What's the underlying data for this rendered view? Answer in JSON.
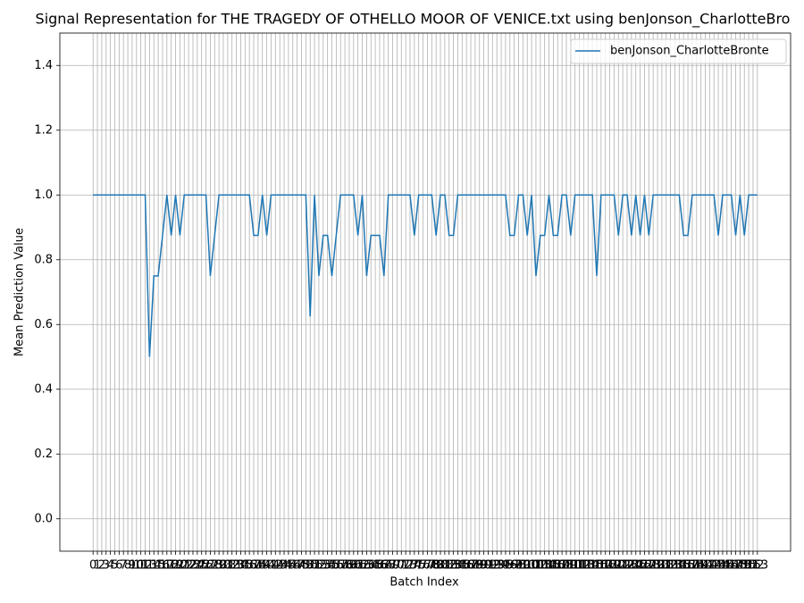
{
  "chart_data": {
    "type": "line",
    "title": "Signal Representation for THE TRAGEDY OF OTHELLO MOOR OF VENICE.txt using benJonson_CharlotteBro",
    "x_label": "Batch Index",
    "y_label": "Mean Prediction Value",
    "x": [
      0,
      1,
      2,
      3,
      4,
      5,
      6,
      7,
      8,
      9,
      10,
      11,
      12,
      13,
      14,
      15,
      16,
      17,
      18,
      19,
      20,
      21,
      22,
      23,
      24,
      25,
      26,
      27,
      28,
      29,
      30,
      31,
      32,
      33,
      34,
      35,
      36,
      37,
      38,
      39,
      40,
      41,
      42,
      43,
      44,
      45,
      46,
      47,
      48,
      49,
      50,
      51,
      52,
      53,
      54,
      55,
      56,
      57,
      58,
      59,
      60,
      61,
      62,
      63,
      64,
      65,
      66,
      67,
      68,
      69,
      70,
      71,
      72,
      73,
      74,
      75,
      76,
      77,
      78,
      79,
      80,
      81,
      82,
      83,
      84,
      85,
      86,
      87,
      88,
      89,
      90,
      91,
      92,
      93,
      94,
      95,
      96,
      97,
      98,
      99,
      100,
      101,
      102,
      103,
      104,
      105,
      106,
      107,
      108,
      109,
      110,
      111,
      112,
      113,
      114,
      115,
      116,
      117,
      118,
      119,
      120,
      121,
      122,
      123,
      124,
      125,
      126,
      127,
      128,
      129,
      130,
      131,
      132,
      133,
      134,
      135,
      136,
      137,
      138,
      139,
      140,
      141,
      142,
      143,
      144,
      145,
      146,
      147,
      148,
      149,
      150,
      151,
      152,
      153
    ],
    "series": [
      {
        "name": "benJonson_CharlotteBronte",
        "color": "#1f77b4",
        "values": [
          1,
          1,
          1,
          1,
          1,
          1,
          1,
          1,
          1,
          1,
          1,
          1,
          1,
          0.5,
          0.75,
          0.75,
          0.875,
          1,
          0.875,
          1,
          0.875,
          1,
          1,
          1,
          1,
          1,
          1,
          0.75,
          0.875,
          1,
          1,
          1,
          1,
          1,
          1,
          1,
          1,
          0.875,
          0.875,
          1,
          0.875,
          1,
          1,
          1,
          1,
          1,
          1,
          1,
          1,
          1,
          0.625,
          1,
          0.75,
          0.875,
          0.875,
          0.75,
          0.875,
          1,
          1,
          1,
          1,
          0.875,
          1,
          0.75,
          0.875,
          0.875,
          0.875,
          0.75,
          1,
          1,
          1,
          1,
          1,
          1,
          0.875,
          1,
          1,
          1,
          1,
          0.875,
          1,
          1,
          0.875,
          0.875,
          1,
          1,
          1,
          1,
          1,
          1,
          1,
          1,
          1,
          1,
          1,
          1,
          0.875,
          0.875,
          1,
          1,
          0.875,
          1,
          0.75,
          0.875,
          0.875,
          1,
          0.875,
          0.875,
          1,
          1,
          0.875,
          1,
          1,
          1,
          1,
          1,
          0.75,
          1,
          1,
          1,
          1,
          0.875,
          1,
          1,
          0.875,
          1,
          0.875,
          1,
          0.875,
          1,
          1,
          1,
          1,
          1,
          1,
          1,
          0.875,
          0.875,
          1,
          1,
          1,
          1,
          1,
          1,
          0.875,
          1,
          1,
          1,
          0.875,
          1,
          0.875,
          1,
          1,
          1
        ]
      }
    ],
    "xlim": [
      -7.65,
      160.65
    ],
    "xticks": [
      0,
      1,
      2,
      3,
      4,
      5,
      6,
      7,
      8,
      9,
      10,
      11,
      12,
      13,
      14,
      15,
      16,
      17,
      18,
      19,
      20,
      21,
      22,
      23,
      24,
      25,
      26,
      27,
      28,
      29,
      30,
      31,
      32,
      33,
      34,
      35,
      36,
      37,
      38,
      39,
      40,
      41,
      42,
      43,
      44,
      45,
      46,
      47,
      48,
      49,
      50,
      51,
      52,
      53,
      54,
      55,
      56,
      57,
      58,
      59,
      60,
      61,
      62,
      63,
      64,
      65,
      66,
      67,
      68,
      69,
      70,
      71,
      72,
      73,
      74,
      75,
      76,
      77,
      78,
      79,
      80,
      81,
      82,
      83,
      84,
      85,
      86,
      87,
      88,
      89,
      90,
      91,
      92,
      93,
      94,
      95,
      96,
      97,
      98,
      99,
      100,
      101,
      102,
      103,
      104,
      105,
      106,
      107,
      108,
      109,
      110,
      111,
      112,
      113,
      114,
      115,
      116,
      117,
      118,
      119,
      120,
      121,
      122,
      123,
      124,
      125,
      126,
      127,
      128,
      129,
      130,
      131,
      132,
      133,
      134,
      135,
      136,
      137,
      138,
      139,
      140,
      141,
      142,
      143,
      144,
      145,
      146,
      147,
      148,
      149,
      150,
      151,
      152,
      153
    ],
    "ylim": [
      -0.1,
      1.5
    ],
    "yticks": [
      {
        "value": 0,
        "label": "0.0"
      },
      0.2,
      0.4,
      0.6,
      0.8,
      {
        "value": 1,
        "label": "1.0"
      },
      1.2,
      1.4
    ],
    "grid": true,
    "legend": "upper right"
  }
}
